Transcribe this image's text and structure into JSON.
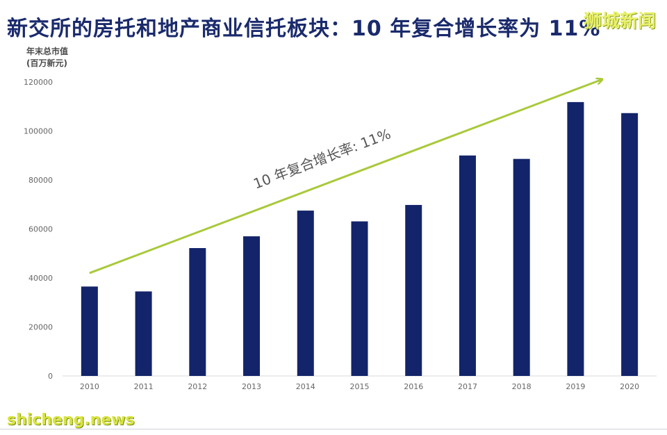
{
  "title": "新交所的房托和地产商业信托板块：10 年复合增长率为 11%",
  "watermark_top": "狮城新闻",
  "watermark_bottom": "shicheng.news",
  "chart_data": {
    "type": "bar",
    "title": "新交所的房托和地产商业信托板块：10 年复合增长率为 11%",
    "ylabel_line1": "年末总市值",
    "ylabel_line2": "(百万新元)",
    "categories": [
      "2010",
      "2011",
      "2012",
      "2013",
      "2014",
      "2015",
      "2016",
      "2017",
      "2018",
      "2019",
      "2020"
    ],
    "values": [
      36500,
      34500,
      52200,
      57000,
      67500,
      63100,
      69800,
      90000,
      88600,
      111800,
      107300
    ],
    "ylim": [
      0,
      120000
    ],
    "yticks": [
      0,
      20000,
      40000,
      60000,
      80000,
      100000,
      120000
    ],
    "grid": false,
    "bar_color": "#13246a",
    "annotation": {
      "text": "10 年复合增长率: 11%",
      "arrow_color": "#a9c93a",
      "from": [
        "2010",
        42000
      ],
      "to": [
        "2020",
        121000
      ]
    }
  }
}
